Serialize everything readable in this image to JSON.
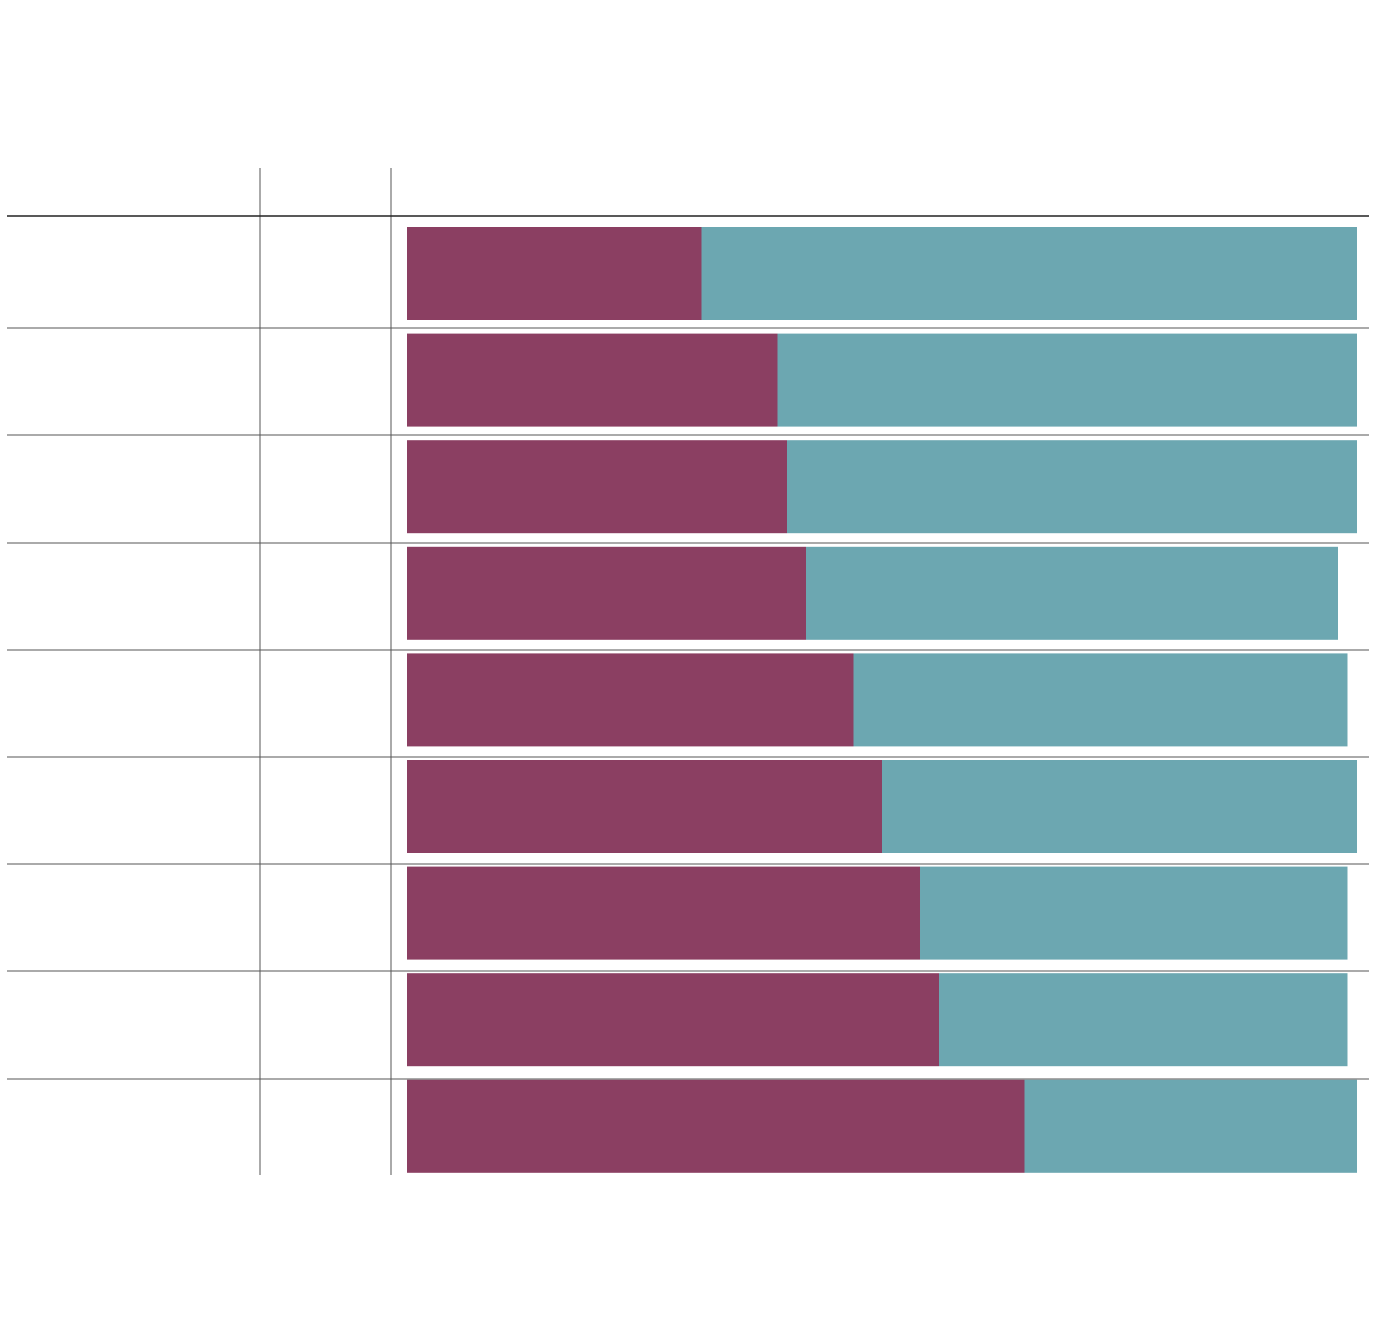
{
  "colors": {
    "segment_a": "#8b3f62",
    "segment_b": "#6ca7b1",
    "rules": "#555555",
    "background": "#ffffff"
  },
  "chart_data": {
    "type": "bar",
    "orientation": "horizontal",
    "stacked": true,
    "title": "",
    "xlabel": "",
    "ylabel": "",
    "xlim": [
      0,
      100
    ],
    "grid": false,
    "legend": "none",
    "table_columns": [
      "",
      "",
      ""
    ],
    "categories": [
      "",
      "",
      "",
      "",
      "",
      "",
      "",
      "",
      ""
    ],
    "column2_values": [
      "",
      "",
      "",
      "",
      "",
      "",
      "",
      "",
      ""
    ],
    "series": [
      {
        "values": [
          31,
          39,
          40,
          42,
          47,
          50,
          54,
          56,
          65
        ]
      },
      {
        "values": [
          69,
          61,
          60,
          56,
          52,
          50,
          45,
          43,
          35
        ]
      }
    ]
  }
}
